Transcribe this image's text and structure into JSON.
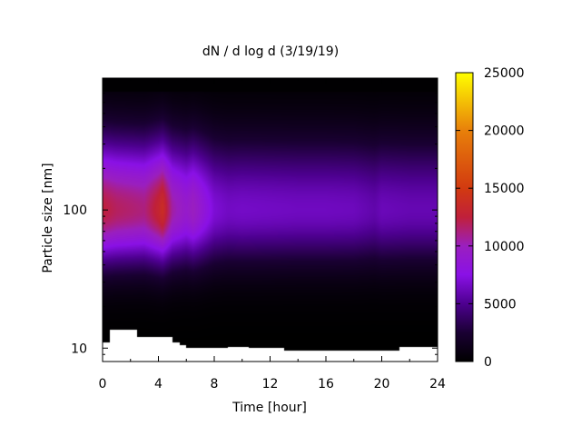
{
  "chart_data": {
    "type": "heatmap",
    "title": "dN / d log d (3/19/19)",
    "xlabel": "Time [hour]",
    "ylabel": "Particle size [nm]",
    "xlim": [
      0,
      24
    ],
    "ylim": [
      8,
      900
    ],
    "yscale": "log",
    "xticks": [
      0,
      4,
      8,
      12,
      16,
      20,
      24
    ],
    "yticks": [
      10,
      100
    ],
    "colorbar": {
      "range": [
        0,
        25000
      ],
      "ticks": [
        0,
        5000,
        10000,
        15000,
        20000,
        25000
      ],
      "colors": [
        {
          "v": 0,
          "c": "#000000"
        },
        {
          "v": 2500,
          "c": "#1a0033"
        },
        {
          "v": 5000,
          "c": "#4d008f"
        },
        {
          "v": 7500,
          "c": "#8a11e6"
        },
        {
          "v": 10000,
          "c": "#9a1fbf"
        },
        {
          "v": 12500,
          "c": "#c0203a"
        },
        {
          "v": 15000,
          "c": "#d23a10"
        },
        {
          "v": 20000,
          "c": "#e8800a"
        },
        {
          "v": 25000,
          "c": "#ffff00"
        }
      ]
    },
    "size_distribution": {
      "peak_size_nm": 100,
      "times": [
        0,
        1,
        2,
        3,
        4,
        4.3,
        5,
        6,
        6.5,
        7,
        8,
        9,
        10,
        12,
        14,
        16,
        18,
        19.5,
        20,
        22,
        24
      ],
      "peak_values": [
        12500,
        11800,
        11500,
        11200,
        13000,
        13800,
        10500,
        9200,
        10000,
        9000,
        7000,
        6500,
        6600,
        6500,
        6400,
        6400,
        6300,
        5800,
        6200,
        6000,
        6000
      ]
    },
    "min_measured_size_nm": [
      {
        "t": 0,
        "d": 11
      },
      {
        "t": 0.5,
        "d": 13.5
      },
      {
        "t": 2.5,
        "d": 12
      },
      {
        "t": 5,
        "d": 11
      },
      {
        "t": 5.5,
        "d": 10.5
      },
      {
        "t": 6,
        "d": 10
      },
      {
        "t": 9,
        "d": 10.2
      },
      {
        "t": 10.5,
        "d": 10
      },
      {
        "t": 13,
        "d": 9.6
      },
      {
        "t": 21,
        "d": 9.6
      },
      {
        "t": 21.3,
        "d": 10.2
      },
      {
        "t": 24,
        "d": 10.2
      }
    ]
  }
}
